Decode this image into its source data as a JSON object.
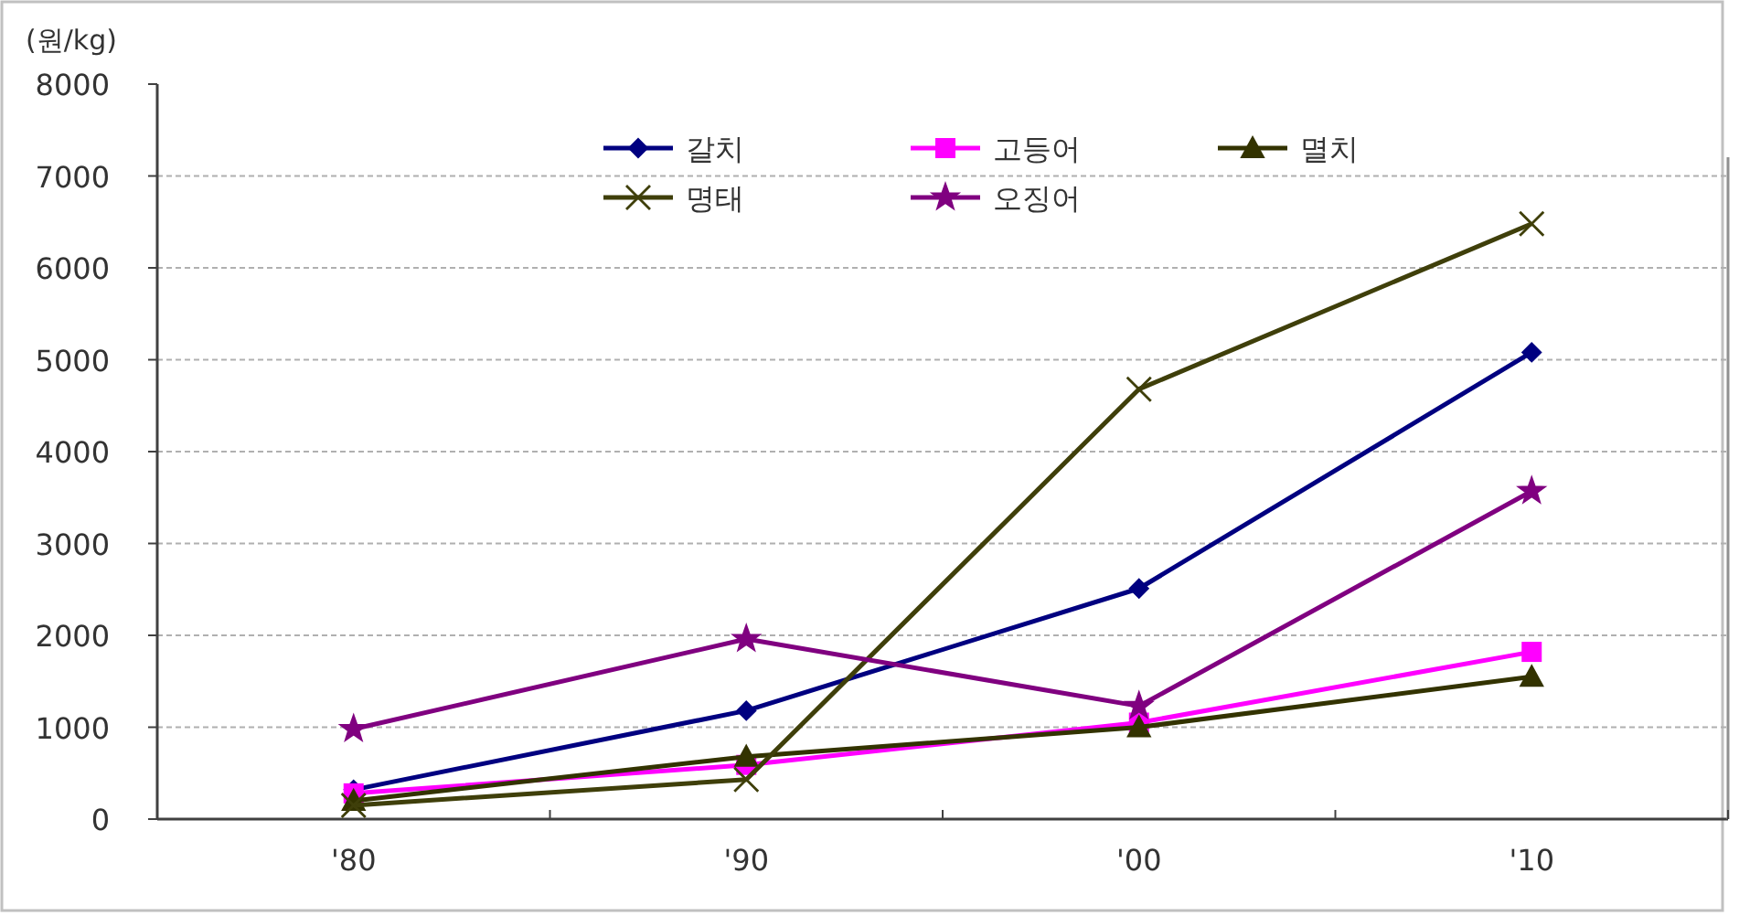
{
  "chart_data": {
    "type": "line",
    "ylabel": "(원/kg)",
    "categories": [
      "'80",
      "'90",
      "'00",
      "'10"
    ],
    "ylim": [
      0,
      8000
    ],
    "yticks": [
      0,
      1000,
      2000,
      3000,
      4000,
      5000,
      6000,
      7000,
      8000
    ],
    "grid": "y",
    "legend": "top",
    "series": [
      {
        "name": "갈치",
        "color": "#000080",
        "marker": "diamond",
        "values": [
          320,
          1180,
          2510,
          5080
        ]
      },
      {
        "name": "고등어",
        "color": "#ff00ff",
        "marker": "square",
        "values": [
          280,
          590,
          1050,
          1820
        ]
      },
      {
        "name": "멸치",
        "color": "#333300",
        "marker": "triangle",
        "values": [
          200,
          680,
          1000,
          1550
        ]
      },
      {
        "name": "명태",
        "color": "#3f3f0a",
        "marker": "cross",
        "values": [
          150,
          430,
          4680,
          6480
        ]
      },
      {
        "name": "오징어",
        "color": "#800080",
        "marker": "star",
        "values": [
          980,
          1960,
          1230,
          3570
        ]
      }
    ]
  }
}
